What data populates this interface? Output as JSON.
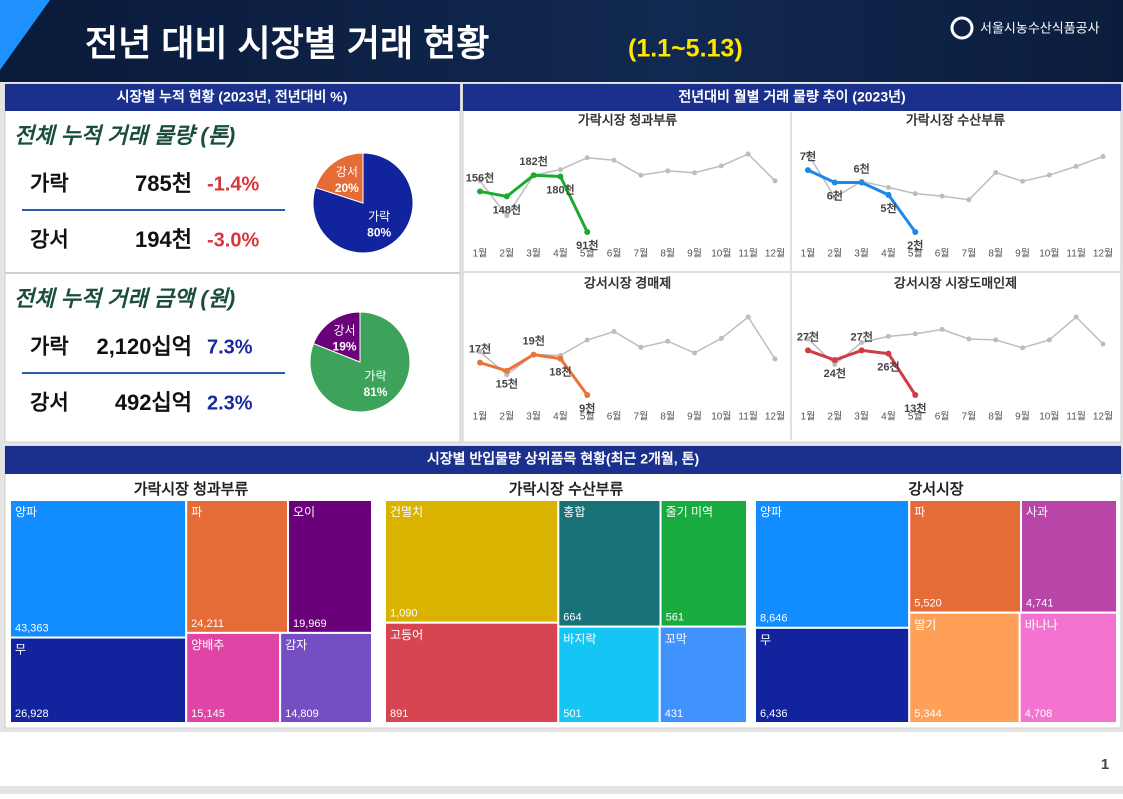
{
  "header": {
    "title": "전년 대비 시장별 거래 현황",
    "period": "(1.1~5.13)",
    "org": "서울시농수산식품공사"
  },
  "page_number": "1",
  "summary": {
    "heading": "시장별 누적 현황 (2023년, 전년대비 %)",
    "sections": [
      {
        "title": "전체 누적 거래 물량 (톤)",
        "change_color": "#d9363e",
        "rows": [
          {
            "market": "가락",
            "amount": "785천",
            "change": "-1.4%"
          },
          {
            "market": "강서",
            "amount": "194천",
            "change": "-3.0%"
          }
        ]
      },
      {
        "title": "전체 누적 거래 금액 (원)",
        "change_color": "#1a2a9c",
        "rows": [
          {
            "market": "가락",
            "amount": "2,120십억",
            "change": "7.3%"
          },
          {
            "market": "강서",
            "amount": "492십억",
            "change": "2.3%"
          }
        ]
      }
    ]
  },
  "trend_heading": "전년대비 월별 거래 물량 추이 (2023년)",
  "treemap_heading": "시장별 반입물량 상위품목 현황(최근 2개월, 톤)",
  "chart_data": [
    {
      "type": "pie",
      "categories": [
        "가락",
        "강서"
      ],
      "values": [
        80,
        20
      ],
      "value_labels": [
        "80%",
        "20%"
      ],
      "colors": [
        "#12239e",
        "#e66c37"
      ]
    },
    {
      "type": "pie",
      "categories": [
        "가락",
        "강서"
      ],
      "values": [
        81,
        19
      ],
      "value_labels": [
        "81%",
        "19%"
      ],
      "colors": [
        "#3da35a",
        "#6b007b"
      ]
    },
    {
      "type": "line",
      "title": "가락시장 청과부류",
      "categories": [
        "1월",
        "2월",
        "3월",
        "4월",
        "5월",
        "6월",
        "7월",
        "8월",
        "9월",
        "10월",
        "11월",
        "12월"
      ],
      "series": [
        {
          "color": "#bdbdbd",
          "values": [
            173,
            117,
            182,
            191,
            210,
            206,
            182,
            189,
            186,
            197,
            216,
            173
          ]
        },
        {
          "color": "#1aab2e",
          "values": [
            156,
            148,
            182,
            180,
            91,
            null,
            null,
            null,
            null,
            null,
            null,
            null
          ],
          "value_labels": [
            "156천",
            "148천",
            "182천",
            "180천",
            "91천",
            null,
            null,
            null,
            null,
            null,
            null,
            null
          ]
        }
      ]
    },
    {
      "type": "line",
      "title": "가락시장 수산부류",
      "categories": [
        "1월",
        "2월",
        "3월",
        "4월",
        "5월",
        "6월",
        "7월",
        "8월",
        "9월",
        "10월",
        "11월",
        "12월"
      ],
      "series": [
        {
          "color": "#bdbdbd",
          "values": [
            8.3,
            4.8,
            6.1,
            5.6,
            5.1,
            4.9,
            4.6,
            6.8,
            6.1,
            6.6,
            7.3,
            8.1
          ]
        },
        {
          "color": "#1e88e5",
          "values": [
            7,
            6,
            6,
            5,
            2,
            null,
            null,
            null,
            null,
            null,
            null,
            null
          ],
          "value_labels": [
            "7천",
            "6천",
            "6천",
            "5천",
            "2천",
            null,
            null,
            null,
            null,
            null,
            null,
            null
          ]
        }
      ]
    },
    {
      "type": "line",
      "title": "강서시장 경매제",
      "categories": [
        "1월",
        "2월",
        "3월",
        "4월",
        "5월",
        "6월",
        "7월",
        "8월",
        "9월",
        "10월",
        "11월",
        "12월"
      ],
      "series": [
        {
          "color": "#bdbdbd",
          "values": [
            19.7,
            14,
            19,
            18.8,
            22.6,
            24.7,
            20.8,
            22.3,
            19.4,
            23,
            28.3,
            17.9
          ]
        },
        {
          "color": "#e8743b",
          "values": [
            17,
            15,
            19,
            18,
            9,
            null,
            null,
            null,
            null,
            null,
            null,
            null
          ],
          "value_labels": [
            "17천",
            "15천",
            "19천",
            "18천",
            "9천",
            null,
            null,
            null,
            null,
            null,
            null,
            null
          ]
        }
      ]
    },
    {
      "type": "line",
      "title": "강서시장 시장도매인제",
      "categories": [
        "1월",
        "2월",
        "3월",
        "4월",
        "5월",
        "6월",
        "7월",
        "8월",
        "9월",
        "10월",
        "11월",
        "12월"
      ],
      "series": [
        {
          "color": "#bdbdbd",
          "values": [
            30.6,
            22.6,
            29.5,
            31.4,
            32.2,
            33.6,
            30.6,
            30.3,
            27.8,
            30.3,
            37.5,
            29
          ]
        },
        {
          "color": "#d13b47",
          "values": [
            27,
            24,
            27,
            26,
            13,
            null,
            null,
            null,
            null,
            null,
            null,
            null
          ],
          "value_labels": [
            "27천",
            "24천",
            "27천",
            "26천",
            "13천",
            null,
            null,
            null,
            null,
            null,
            null,
            null
          ]
        }
      ]
    },
    {
      "type": "treemap",
      "title": "가락시장 청과부류",
      "categories": [
        "양파",
        "무",
        "파",
        "오이",
        "양배추",
        "감자"
      ],
      "values": [
        43363,
        26928,
        24211,
        19969,
        15145,
        14809
      ],
      "value_labels": [
        "43,363",
        "26,928",
        "24,211",
        "19,969",
        "15,145",
        "14,809"
      ],
      "colors": [
        "#118dff",
        "#12239e",
        "#e66c37",
        "#6b007b",
        "#e044a7",
        "#744ec2"
      ]
    },
    {
      "type": "treemap",
      "title": "가락시장 수산부류",
      "categories": [
        "건멸치",
        "고등어",
        "홍합",
        "줄기 미역",
        "바지락",
        "꼬막"
      ],
      "values": [
        1090,
        891,
        664,
        561,
        501,
        431
      ],
      "value_labels": [
        "1,090",
        "891",
        "664",
        "561",
        "501",
        "431"
      ],
      "colors": [
        "#d9b300",
        "#d64550",
        "#197278",
        "#1aab40",
        "#15c6f4",
        "#4092ff"
      ]
    },
    {
      "type": "treemap",
      "title": "강서시장",
      "categories": [
        "양파",
        "무",
        "파",
        "사과",
        "딸기",
        "바나나"
      ],
      "values": [
        8646,
        6436,
        5520,
        4741,
        5344,
        4708
      ],
      "value_labels": [
        "8,646",
        "6,436",
        "5,520",
        "4,741",
        "5,344",
        "4,708"
      ],
      "colors": [
        "#118dff",
        "#12239e",
        "#e66c37",
        "#b845a7",
        "#ffa058",
        "#f472d0"
      ]
    }
  ]
}
